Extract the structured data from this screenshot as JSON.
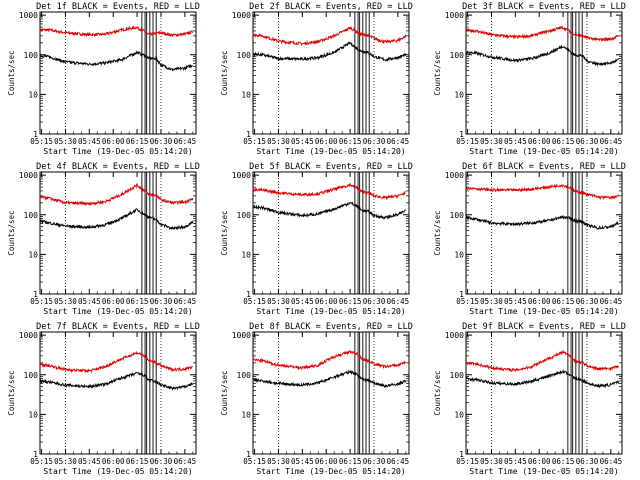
{
  "colors": {
    "events": "#000000",
    "lld": "#e00000",
    "axis": "#000000",
    "background": "#ffffff"
  },
  "xlabel": "Start Time (19-Dec-05 05:14:20)",
  "ylabel": "Counts/sec",
  "xtick_labels": [
    "05:15",
    "05:30",
    "05:45",
    "06:00",
    "06:15",
    "06:30",
    "06:45"
  ],
  "ytick_labels": [
    "1",
    "10",
    "100",
    "1000"
  ],
  "chart_data": [
    {
      "type": "line",
      "title": "Det 1f BLACK = Events, RED = LLD",
      "x": [
        "05:14",
        "05:20",
        "05:30",
        "05:45",
        "05:55",
        "06:05",
        "06:15",
        "06:20",
        "06:22",
        "06:27",
        "06:30",
        "06:37",
        "06:45",
        "06:50"
      ],
      "xlim": [
        "05:14",
        "06:52"
      ],
      "ylim": [
        1,
        1200
      ],
      "yscale": "log",
      "grid": false,
      "series": [
        {
          "values": [
            430,
            420,
            360,
            320,
            330,
            420,
            490,
            380,
            320,
            350,
            360,
            310,
            330,
            380
          ]
        },
        {
          "values": [
            95,
            88,
            66,
            58,
            62,
            75,
            115,
            95,
            82,
            80,
            56,
            42,
            46,
            55
          ]
        }
      ]
    },
    {
      "type": "line",
      "title": "Det 2f BLACK = Events, RED = LLD",
      "x": [
        "05:14",
        "05:20",
        "05:30",
        "05:45",
        "05:55",
        "06:05",
        "06:15",
        "06:20",
        "06:22",
        "06:27",
        "06:30",
        "06:37",
        "06:45",
        "06:50"
      ],
      "xlim": [
        "05:14",
        "06:52"
      ],
      "ylim": [
        1,
        1200
      ],
      "yscale": "log",
      "grid": false,
      "series": [
        {
          "values": [
            320,
            300,
            220,
            190,
            215,
            300,
            480,
            360,
            330,
            300,
            260,
            210,
            230,
            290
          ]
        },
        {
          "values": [
            105,
            100,
            80,
            78,
            85,
            115,
            200,
            135,
            125,
            110,
            90,
            75,
            85,
            100
          ]
        }
      ]
    },
    {
      "type": "line",
      "title": "Det 3f BLACK = Events, RED = LLD",
      "x": [
        "05:14",
        "05:20",
        "05:30",
        "05:45",
        "05:55",
        "06:05",
        "06:15",
        "06:20",
        "06:22",
        "06:27",
        "06:30",
        "06:37",
        "06:45",
        "06:50"
      ],
      "xlim": [
        "05:14",
        "06:52"
      ],
      "ylim": [
        1,
        1200
      ],
      "yscale": "log",
      "grid": false,
      "series": [
        {
          "values": [
            420,
            400,
            320,
            280,
            300,
            390,
            490,
            370,
            330,
            300,
            270,
            240,
            250,
            300
          ]
        },
        {
          "values": [
            115,
            110,
            88,
            72,
            80,
            105,
            165,
            115,
            100,
            95,
            70,
            58,
            62,
            75
          ]
        }
      ]
    },
    {
      "type": "line",
      "title": "Det 4f BLACK = Events, RED = LLD",
      "x": [
        "05:14",
        "05:20",
        "05:30",
        "05:45",
        "05:55",
        "06:05",
        "06:15",
        "06:20",
        "06:22",
        "06:27",
        "06:30",
        "06:37",
        "06:45",
        "06:50"
      ],
      "xlim": [
        "05:14",
        "06:52"
      ],
      "ylim": [
        1,
        1200
      ],
      "yscale": "log",
      "grid": false,
      "series": [
        {
          "values": [
            280,
            260,
            200,
            190,
            215,
            320,
            560,
            400,
            330,
            310,
            240,
            200,
            210,
            250
          ]
        },
        {
          "values": [
            70,
            62,
            52,
            48,
            56,
            80,
            135,
            100,
            90,
            75,
            58,
            45,
            50,
            65
          ]
        }
      ]
    },
    {
      "type": "line",
      "title": "Det 5f BLACK = Events, RED = LLD",
      "x": [
        "05:14",
        "05:20",
        "05:30",
        "05:45",
        "05:55",
        "06:05",
        "06:15",
        "06:20",
        "06:22",
        "06:27",
        "06:30",
        "06:37",
        "06:45",
        "06:50"
      ],
      "xlim": [
        "05:14",
        "06:52"
      ],
      "ylim": [
        1,
        1200
      ],
      "yscale": "log",
      "grid": false,
      "series": [
        {
          "values": [
            440,
            420,
            360,
            320,
            340,
            440,
            570,
            460,
            390,
            350,
            300,
            270,
            300,
            360
          ]
        },
        {
          "values": [
            155,
            150,
            115,
            95,
            105,
            140,
            200,
            160,
            130,
            120,
            95,
            85,
            100,
            130
          ]
        }
      ]
    },
    {
      "type": "line",
      "title": "Det 6f BLACK = Events, RED = LLD",
      "x": [
        "05:14",
        "05:20",
        "05:30",
        "05:45",
        "05:55",
        "06:05",
        "06:15",
        "06:20",
        "06:22",
        "06:27",
        "06:30",
        "06:37",
        "06:45",
        "06:50"
      ],
      "xlim": [
        "05:14",
        "06:52"
      ],
      "ylim": [
        1,
        1200
      ],
      "yscale": "log",
      "grid": false,
      "series": [
        {
          "values": [
            480,
            460,
            420,
            420,
            440,
            500,
            560,
            470,
            400,
            360,
            330,
            280,
            270,
            300
          ]
        },
        {
          "values": [
            85,
            78,
            62,
            58,
            62,
            70,
            88,
            80,
            72,
            68,
            55,
            46,
            50,
            62
          ]
        }
      ]
    },
    {
      "type": "line",
      "title": "Det 7f BLACK = Events, RED = LLD",
      "x": [
        "05:14",
        "05:20",
        "05:30",
        "05:45",
        "05:55",
        "06:05",
        "06:15",
        "06:20",
        "06:22",
        "06:27",
        "06:30",
        "06:37",
        "06:45",
        "06:50"
      ],
      "xlim": [
        "05:14",
        "06:52"
      ],
      "ylim": [
        1,
        1200
      ],
      "yscale": "log",
      "grid": false,
      "series": [
        {
          "values": [
            180,
            170,
            135,
            125,
            160,
            250,
            360,
            300,
            230,
            200,
            170,
            135,
            140,
            160
          ]
        },
        {
          "values": [
            70,
            65,
            55,
            50,
            58,
            82,
            110,
            95,
            75,
            65,
            56,
            45,
            50,
            60
          ]
        }
      ]
    },
    {
      "type": "line",
      "title": "Det 8f BLACK = Events, RED = LLD",
      "x": [
        "05:14",
        "05:20",
        "05:30",
        "05:45",
        "05:55",
        "06:05",
        "06:15",
        "06:20",
        "06:22",
        "06:27",
        "06:30",
        "06:37",
        "06:45",
        "06:50"
      ],
      "xlim": [
        "05:14",
        "06:52"
      ],
      "ylim": [
        1,
        1200
      ],
      "yscale": "log",
      "grid": false,
      "series": [
        {
          "values": [
            240,
            225,
            175,
            150,
            175,
            290,
            380,
            330,
            260,
            220,
            190,
            160,
            175,
            210
          ]
        },
        {
          "values": [
            75,
            70,
            60,
            55,
            62,
            88,
            120,
            100,
            80,
            72,
            62,
            52,
            58,
            70
          ]
        }
      ]
    },
    {
      "type": "line",
      "title": "Det 9f BLACK = Events, RED = LLD",
      "x": [
        "05:14",
        "05:20",
        "05:30",
        "05:45",
        "05:55",
        "06:05",
        "06:15",
        "06:20",
        "06:22",
        "06:27",
        "06:30",
        "06:37",
        "06:45",
        "06:50"
      ],
      "xlim": [
        "05:14",
        "06:52"
      ],
      "ylim": [
        1,
        1200
      ],
      "yscale": "log",
      "grid": false,
      "series": [
        {
          "values": [
            200,
            190,
            150,
            130,
            160,
            250,
            370,
            290,
            230,
            200,
            170,
            140,
            145,
            165
          ]
        },
        {
          "values": [
            80,
            76,
            62,
            58,
            68,
            92,
            120,
            100,
            82,
            74,
            62,
            52,
            56,
            66
          ]
        }
      ]
    }
  ]
}
